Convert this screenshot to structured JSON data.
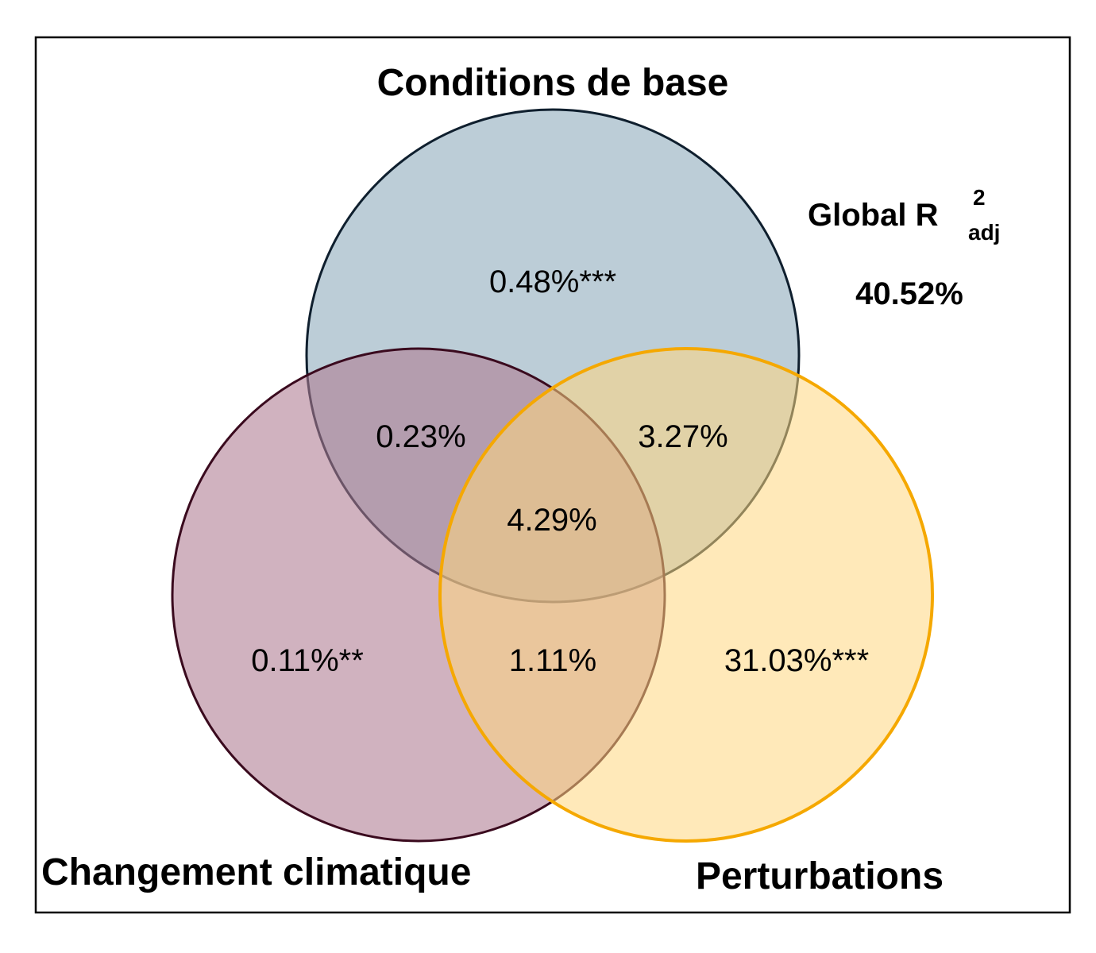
{
  "sets": {
    "base": {
      "label": "Conditions de base",
      "fill": "#8BA8BA",
      "stroke": "#0F1F2E"
    },
    "climate": {
      "label": "Changement climatique",
      "fill": "#AE7A90",
      "stroke": "#3A0A1E"
    },
    "perturb": {
      "label": "Perturbations",
      "fill": "#FFD77F",
      "stroke": "#F5A800"
    }
  },
  "regions": {
    "base_only": "0.48%***",
    "base_climate": "0.23%",
    "base_perturb": "3.27%",
    "all_three": "4.29%",
    "climate_only": "0.11%**",
    "climate_perturb": "1.11%",
    "perturb_only": "31.03%***"
  },
  "global": {
    "label": "Global R",
    "superscript": "2",
    "subscript": "adj",
    "value": "40.52%"
  }
}
